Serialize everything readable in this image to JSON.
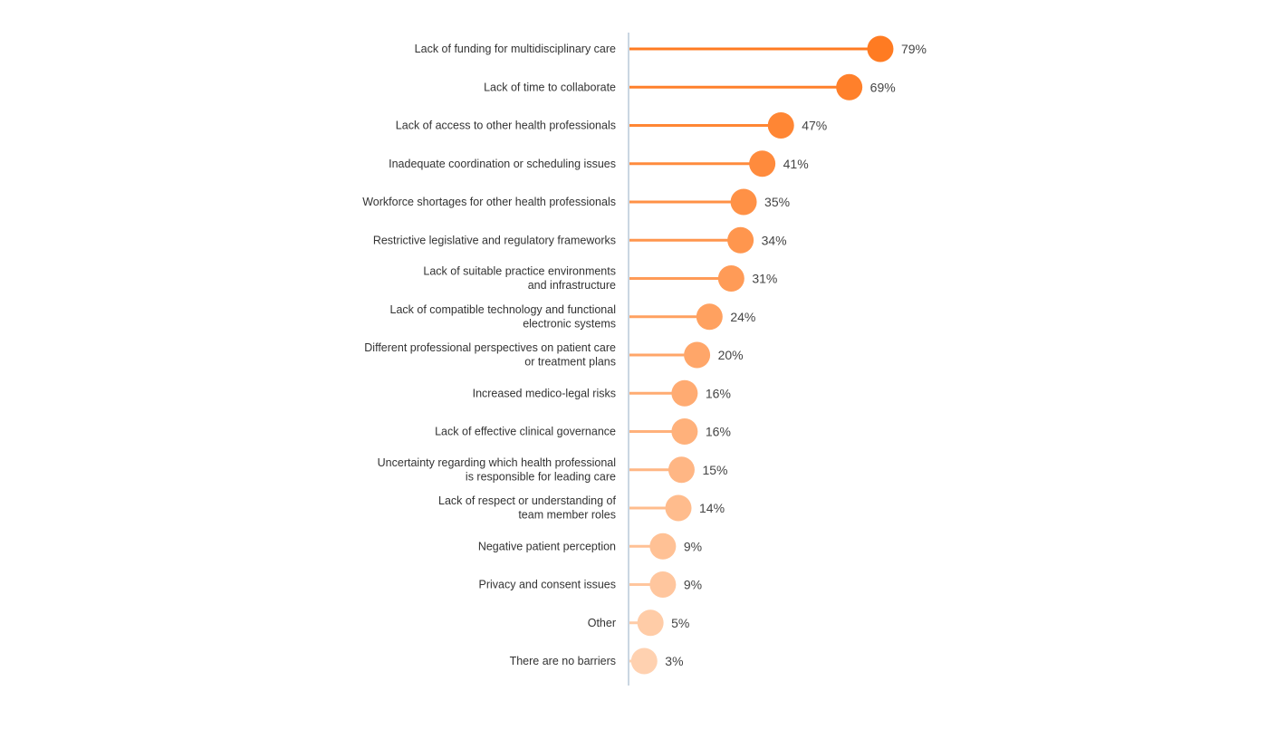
{
  "chart_data": {
    "type": "lollipop",
    "orientation": "horizontal",
    "title": "",
    "xlabel": "",
    "ylabel": "",
    "xlim": [
      0,
      100
    ],
    "grid": false,
    "value_suffix": "%",
    "color_range": [
      "#ff7b22",
      "#ffd1b0"
    ],
    "axis_color": "#b8c8d8",
    "categories": [
      [
        "Lack of funding for multidisciplinary care"
      ],
      [
        "Lack of time to collaborate"
      ],
      [
        "Lack of access to other health professionals"
      ],
      [
        "Inadequate coordination or scheduling issues"
      ],
      [
        "Workforce shortages for other health professionals"
      ],
      [
        "Restrictive legislative and regulatory frameworks"
      ],
      [
        "Lack of suitable practice environments",
        "and infrastructure"
      ],
      [
        "Lack of compatible technology and functional",
        "electronic systems"
      ],
      [
        "Different professional perspectives on patient care",
        "or treatment plans"
      ],
      [
        "Increased medico-legal risks"
      ],
      [
        "Lack of effective clinical governance"
      ],
      [
        "Uncertainty regarding which health professional",
        "is responsible for leading care"
      ],
      [
        "Lack of respect or understanding of",
        "team member roles"
      ],
      [
        "Negative patient perception"
      ],
      [
        "Privacy and consent issues"
      ],
      [
        "Other"
      ],
      [
        "There are no barriers"
      ]
    ],
    "values": [
      79,
      69,
      47,
      41,
      35,
      34,
      31,
      24,
      20,
      16,
      16,
      15,
      14,
      9,
      9,
      5,
      3
    ],
    "value_labels": [
      "79%",
      "69%",
      "47%",
      "41%",
      "35%",
      "34%",
      "31%",
      "24%",
      "20%",
      "16%",
      "16%",
      "15%",
      "14%",
      "9%",
      "9%",
      "5%",
      "3%"
    ]
  }
}
